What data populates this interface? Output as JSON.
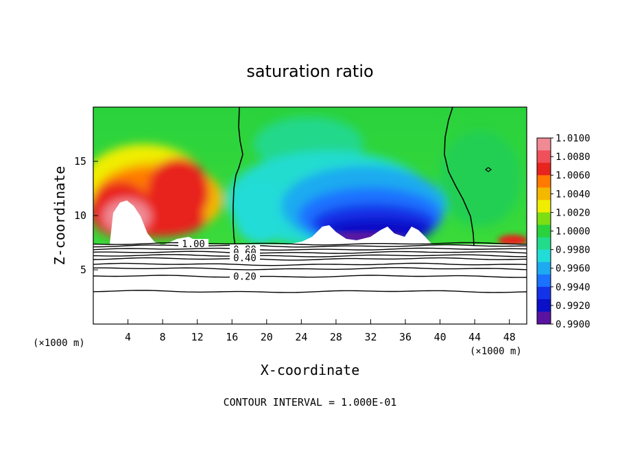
{
  "chart_data": {
    "type": "heatmap",
    "title": "saturation ratio",
    "xlabel": "X-coordinate",
    "ylabel": "Z-coordinate",
    "x_unit": "(×1000 m)",
    "x_unit_right": "(×1000 m)",
    "xlim": [
      0,
      50
    ],
    "ylim": [
      0,
      20
    ],
    "x_ticks": [
      "4",
      "8",
      "12",
      "16",
      "20",
      "24",
      "28",
      "32",
      "36",
      "40",
      "44",
      "48"
    ],
    "x_tick_values": [
      4,
      8,
      12,
      16,
      20,
      24,
      28,
      32,
      36,
      40,
      44,
      48
    ],
    "y_ticks": [
      "5",
      "10",
      "15"
    ],
    "y_tick_values": [
      5,
      10,
      15
    ],
    "colorbar": {
      "labels": [
        "1.0100",
        "1.0080",
        "1.0060",
        "1.0040",
        "1.0020",
        "1.0000",
        "0.9980",
        "0.9960",
        "0.9940",
        "0.9920",
        "0.9900"
      ],
      "colors": [
        "#f08a94",
        "#f0505a",
        "#e8241e",
        "#ff7a00",
        "#f5b800",
        "#f0ee00",
        "#7dde14",
        "#2ad23c",
        "#22dc8c",
        "#22dcd8",
        "#1eaaf0",
        "#1a72ff",
        "#1432e8",
        "#0a10c8",
        "#5a12a0"
      ]
    },
    "contour_labels": [
      "1.00",
      "0.80",
      "0.60",
      "0.40",
      "0.20"
    ],
    "contour_levels": [
      1.0,
      0.8,
      0.6,
      0.4,
      0.2
    ],
    "contour_line_z": [
      7.4,
      7.2,
      6.9,
      6.6,
      6.3,
      6.0,
      5.5,
      5.1,
      4.4,
      3.0
    ],
    "footer": "CONTOUR INTERVAL = 1.000E-01"
  }
}
